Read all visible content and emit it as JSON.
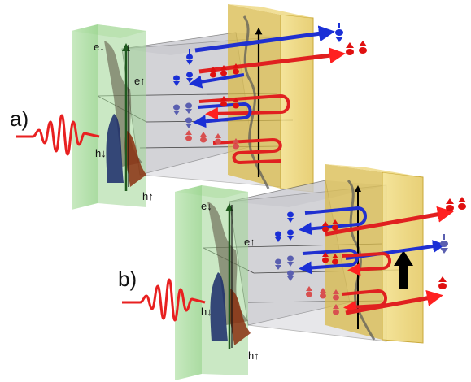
{
  "panels": [
    {
      "label": "a)",
      "labels": {
        "e_down": "e↓",
        "e_up": "e↑",
        "h_down": "h↓",
        "h_up": "h↑"
      }
    },
    {
      "label": "b)",
      "labels": {
        "e_down": "e↓",
        "e_up": "e↑",
        "h_down": "h↓",
        "h_up": "h↑"
      }
    }
  ],
  "colors": {
    "spin_up": "#e01010",
    "spin_down": "#1a2fd6",
    "front_plate": "#a8dca0",
    "back_plate": "#e8cf6a",
    "pulse": "#e82020",
    "box_face": "#c8c8cc"
  }
}
